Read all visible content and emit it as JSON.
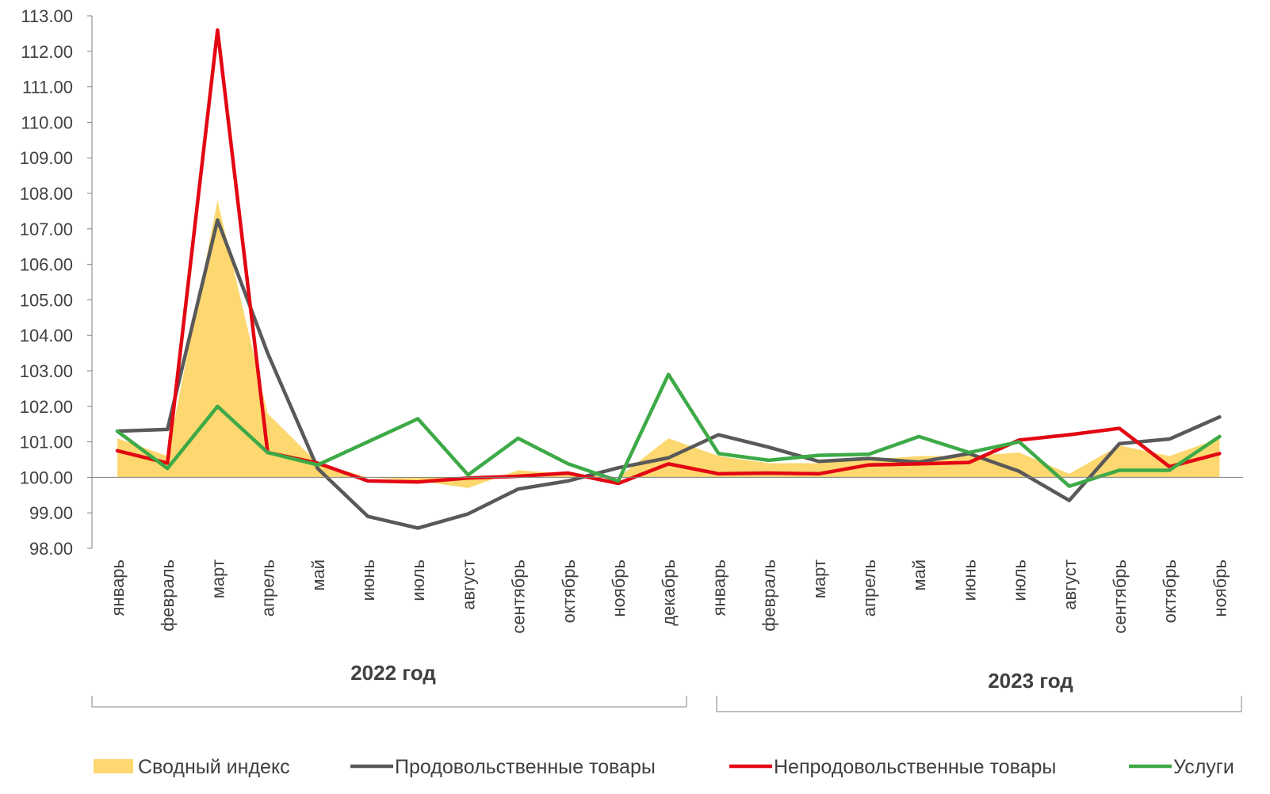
{
  "chart_data": {
    "type": "line",
    "ylim": [
      98,
      113
    ],
    "y_ticks": [
      "98.00",
      "99.00",
      "100.00",
      "101.00",
      "102.00",
      "103.00",
      "104.00",
      "105.00",
      "106.00",
      "107.00",
      "108.00",
      "109.00",
      "110.00",
      "111.00",
      "112.00",
      "113.00"
    ],
    "categories": [
      "январь",
      "февраль",
      "март",
      "апрель",
      "май",
      "июнь",
      "июль",
      "август",
      "сентябрь",
      "октябрь",
      "ноябрь",
      "декабрь",
      "январь",
      "февраль",
      "март",
      "апрель",
      "май",
      "июнь",
      "июль",
      "август",
      "сентябрь",
      "октябрь",
      "ноябрь"
    ],
    "year_groups": [
      {
        "label": "2022 год",
        "start": 0,
        "end": 11
      },
      {
        "label": "2023 год",
        "start": 12,
        "end": 22
      }
    ],
    "baseline": 100,
    "series": [
      {
        "name": "Сводный индекс",
        "kind": "area",
        "color": "#FDD870",
        "values": [
          101.1,
          100.6,
          107.8,
          101.8,
          100.4,
          100.0,
          99.9,
          99.7,
          100.2,
          100.1,
          100.0,
          101.1,
          100.6,
          100.4,
          100.4,
          100.5,
          100.6,
          100.6,
          100.7,
          100.1,
          100.9,
          100.6,
          101.1
        ]
      },
      {
        "name": "Продовольственные товары",
        "kind": "line",
        "color": "#595959",
        "values": [
          101.3,
          101.35,
          107.25,
          103.5,
          100.25,
          98.9,
          98.57,
          98.97,
          99.67,
          99.9,
          100.27,
          100.55,
          101.2,
          100.85,
          100.45,
          100.53,
          100.43,
          100.67,
          100.17,
          99.35,
          100.95,
          101.08,
          101.7
        ]
      },
      {
        "name": "Непродовольственные товары",
        "kind": "line",
        "color": "#E30613",
        "values": [
          100.75,
          100.4,
          112.6,
          100.7,
          100.4,
          99.9,
          99.87,
          99.98,
          100.03,
          100.12,
          99.83,
          100.38,
          100.1,
          100.12,
          100.1,
          100.35,
          100.38,
          100.42,
          101.05,
          101.2,
          101.38,
          100.3,
          100.67
        ]
      },
      {
        "name": "Услуги",
        "kind": "line",
        "color": "#3DAA47",
        "values": [
          101.3,
          100.25,
          102.0,
          100.7,
          100.35,
          101.0,
          101.65,
          100.07,
          101.1,
          100.38,
          99.9,
          102.9,
          100.67,
          100.48,
          100.62,
          100.65,
          101.15,
          100.7,
          101.0,
          99.75,
          100.2,
          100.2,
          101.15
        ]
      }
    ]
  }
}
